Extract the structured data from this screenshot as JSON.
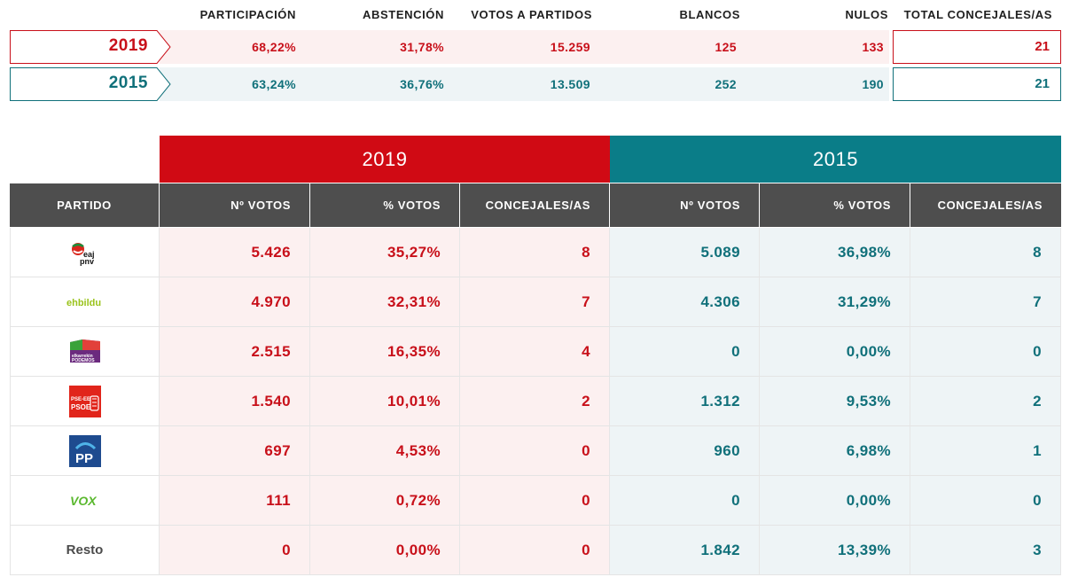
{
  "summary": {
    "headers": {
      "participacion": "PARTICIPACIÓN",
      "abstencion": "ABSTENCIÓN",
      "votos_partidos": "VOTOS A PARTIDOS",
      "blancos": "BLANCOS",
      "nulos": "NULOS",
      "total_concejales": "TOTAL CONCEJALES/AS"
    },
    "rows": [
      {
        "year": "2019",
        "participacion": "68,22%",
        "abstencion": "31,78%",
        "votos_partidos": "15.259",
        "blancos": "125",
        "nulos": "133",
        "total_concejales": "21"
      },
      {
        "year": "2015",
        "participacion": "63,24%",
        "abstencion": "36,76%",
        "votos_partidos": "13.509",
        "blancos": "252",
        "nulos": "190",
        "total_concejales": "21"
      }
    ]
  },
  "results": {
    "year_2019": "2019",
    "year_2015": "2015",
    "columns": {
      "partido": "PARTIDO",
      "votos_19": "Nº VOTOS",
      "pct_19": "% VOTOS",
      "concejales_19": "CONCEJALES/AS",
      "votos_15": "Nº VOTOS",
      "pct_15": "% VOTOS",
      "concejales_15": "CONCEJALES/AS"
    },
    "rows": [
      {
        "party": "eaj pnv",
        "logo": "eaj-pnv-logo",
        "v19": "5.426",
        "p19": "35,27%",
        "c19": "8",
        "v15": "5.089",
        "p15": "36,98%",
        "c15": "8"
      },
      {
        "party": "ehbildu",
        "logo": "ehbildu-logo",
        "v19": "4.970",
        "p19": "32,31%",
        "c19": "7",
        "v15": "4.306",
        "p15": "31,29%",
        "c15": "7"
      },
      {
        "party": "elkarrekin PODEMOS",
        "logo": "elkarrekin-podemos-logo",
        "v19": "2.515",
        "p19": "16,35%",
        "c19": "4",
        "v15": "0",
        "p15": "0,00%",
        "c15": "0"
      },
      {
        "party": "PSE-EE PSOE",
        "logo": "pse-psoe-logo",
        "v19": "1.540",
        "p19": "10,01%",
        "c19": "2",
        "v15": "1.312",
        "p15": "9,53%",
        "c15": "2"
      },
      {
        "party": "PP",
        "logo": "pp-logo",
        "v19": "697",
        "p19": "4,53%",
        "c19": "0",
        "v15": "960",
        "p15": "6,98%",
        "c15": "1"
      },
      {
        "party": "VOX",
        "logo": "vox-logo",
        "v19": "111",
        "p19": "0,72%",
        "c19": "0",
        "v15": "0",
        "p15": "0,00%",
        "c15": "0"
      },
      {
        "party": "Resto",
        "logo": "",
        "v19": "0",
        "p19": "0,00%",
        "c19": "0",
        "v15": "1.842",
        "p15": "13,39%",
        "c15": "3"
      }
    ]
  },
  "colors": {
    "red": "#d00a14",
    "red_text": "#c8101a",
    "teal": "#0a7d88",
    "teal_text": "#10707a",
    "pink_bg": "#fcf0f0",
    "blue_bg": "#eef4f6",
    "header_gray": "#4e4e4e"
  }
}
